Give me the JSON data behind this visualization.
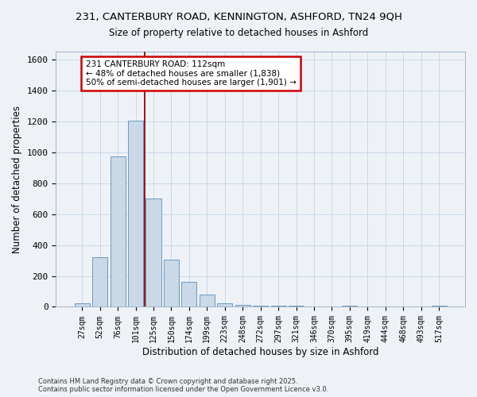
{
  "title_line1": "231, CANTERBURY ROAD, KENNINGTON, ASHFORD, TN24 9QH",
  "title_line2": "Size of property relative to detached houses in Ashford",
  "xlabel": "Distribution of detached houses by size in Ashford",
  "ylabel": "Number of detached properties",
  "categories": [
    "27sqm",
    "52sqm",
    "76sqm",
    "101sqm",
    "125sqm",
    "150sqm",
    "174sqm",
    "199sqm",
    "223sqm",
    "248sqm",
    "272sqm",
    "297sqm",
    "321sqm",
    "346sqm",
    "370sqm",
    "395sqm",
    "419sqm",
    "444sqm",
    "468sqm",
    "493sqm",
    "517sqm"
  ],
  "values": [
    22,
    320,
    975,
    1205,
    700,
    305,
    160,
    78,
    25,
    15,
    10,
    8,
    5,
    2,
    2,
    10,
    2,
    2,
    2,
    2,
    10
  ],
  "bar_color": "#c9d9e8",
  "bar_edge_color": "#5b8db8",
  "grid_color": "#c8d8e8",
  "vline_x": 3.5,
  "vline_color": "#990000",
  "annotation_text": "231 CANTERBURY ROAD: 112sqm\n← 48% of detached houses are smaller (1,838)\n50% of semi-detached houses are larger (1,901) →",
  "annotation_box_color": "#ffffff",
  "annotation_box_edge": "#cc0000",
  "ylim": [
    0,
    1650
  ],
  "yticks": [
    0,
    200,
    400,
    600,
    800,
    1000,
    1200,
    1400,
    1600
  ],
  "footer_line1": "Contains HM Land Registry data © Crown copyright and database right 2025.",
  "footer_line2": "Contains public sector information licensed under the Open Government Licence v3.0.",
  "bg_color": "#eef2f7"
}
